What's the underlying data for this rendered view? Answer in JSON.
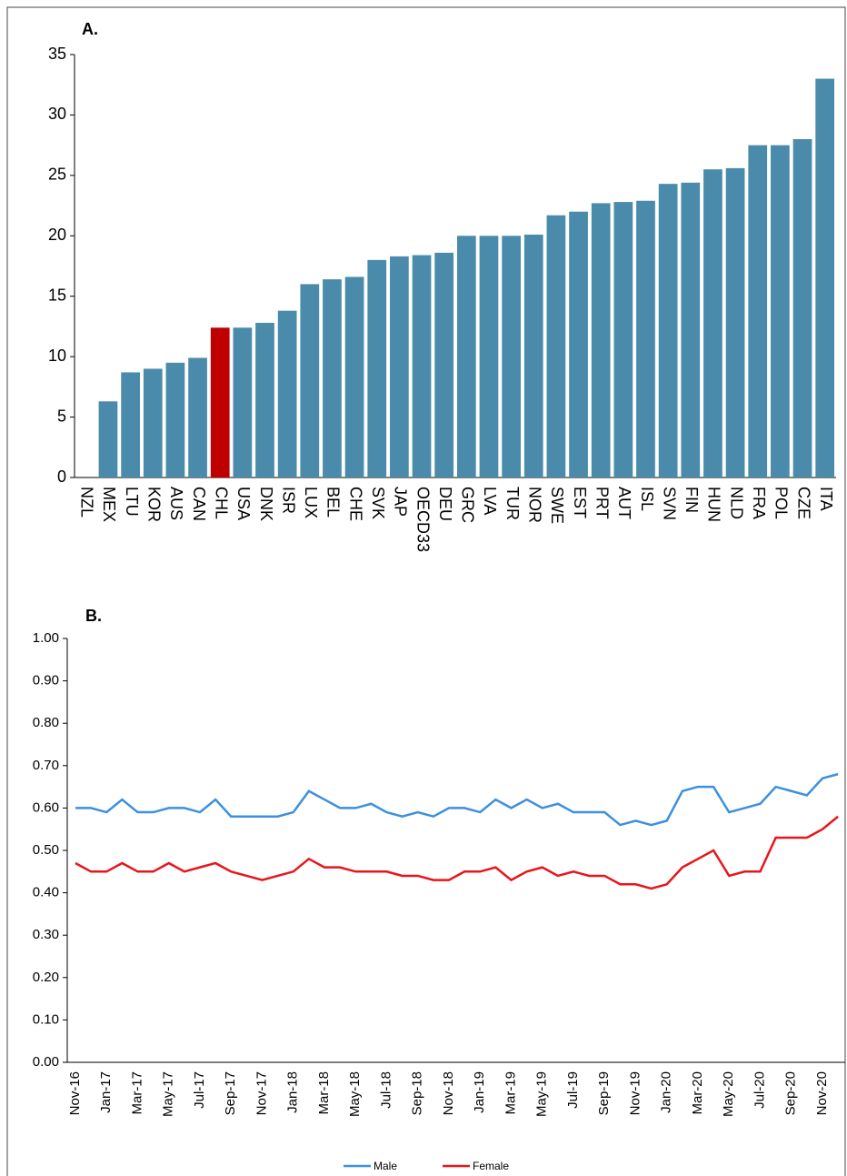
{
  "chart_data": [
    {
      "type": "bar",
      "title": "A.",
      "categories": [
        "NZL",
        "MEX",
        "LTU",
        "KOR",
        "AUS",
        "CAN",
        "CHL",
        "USA",
        "DNK",
        "ISR",
        "LUX",
        "BEL",
        "CHE",
        "SVK",
        "JAP",
        "OECD33",
        "DEU",
        "GRC",
        "LVA",
        "TUR",
        "NOR",
        "SWE",
        "EST",
        "PRT",
        "AUT",
        "ISL",
        "SVN",
        "FIN",
        "HUN",
        "NLD",
        "FRA",
        "POL",
        "CZE",
        "ITA"
      ],
      "values": [
        0,
        6.3,
        8.7,
        9.0,
        9.5,
        9.9,
        12.4,
        12.4,
        12.8,
        13.8,
        16.0,
        16.4,
        16.6,
        18.0,
        18.3,
        18.4,
        18.6,
        20.0,
        20.0,
        20.0,
        20.1,
        21.7,
        22.0,
        22.7,
        22.8,
        22.9,
        24.3,
        24.4,
        25.5,
        25.6,
        27.5,
        27.5,
        28.0,
        33.0
      ],
      "colors": [
        "#4a8aab",
        "#4a8aab",
        "#4a8aab",
        "#4a8aab",
        "#4a8aab",
        "#4a8aab",
        "#c00000",
        "#4a8aab",
        "#4a8aab",
        "#4a8aab",
        "#4a8aab",
        "#4a8aab",
        "#4a8aab",
        "#4a8aab",
        "#4a8aab",
        "#4a8aab",
        "#4a8aab",
        "#4a8aab",
        "#4a8aab",
        "#4a8aab",
        "#4a8aab",
        "#4a8aab",
        "#4a8aab",
        "#4a8aab",
        "#4a8aab",
        "#4a8aab",
        "#4a8aab",
        "#4a8aab",
        "#4a8aab",
        "#4a8aab",
        "#4a8aab",
        "#4a8aab",
        "#4a8aab",
        "#4a8aab"
      ],
      "ylim": [
        0,
        35
      ],
      "yticks": [
        0,
        5,
        10,
        15,
        20,
        25,
        30,
        35
      ],
      "grid": false
    },
    {
      "type": "line",
      "title": "B.",
      "categories": [
        "Nov-16",
        null,
        "Jan-17",
        null,
        "Mar-17",
        null,
        "May-17",
        null,
        "Jul-17",
        null,
        "Sep-17",
        null,
        "Nov-17",
        null,
        "Jan-18",
        null,
        "Mar-18",
        null,
        "May-18",
        null,
        "Jul-18",
        null,
        "Sep-18",
        null,
        "Nov-18",
        null,
        "Jan-19",
        null,
        "Mar-19",
        null,
        "May-19",
        null,
        "Jul-19",
        null,
        "Sep-19",
        null,
        "Nov-19",
        null,
        "Jan-20",
        null,
        "Mar-20",
        null,
        "May-20",
        null,
        "Jul-20",
        null,
        "Sep-20",
        null,
        "Nov-20",
        null
      ],
      "series": [
        {
          "name": "Male",
          "color": "#3d8fe0",
          "values": [
            0.6,
            0.6,
            0.59,
            0.62,
            0.59,
            0.59,
            0.6,
            0.6,
            0.59,
            0.62,
            0.58,
            0.58,
            0.58,
            0.58,
            0.59,
            0.64,
            0.62,
            0.6,
            0.6,
            0.61,
            0.59,
            0.58,
            0.59,
            0.58,
            0.6,
            0.6,
            0.59,
            0.62,
            0.6,
            0.62,
            0.6,
            0.61,
            0.59,
            0.59,
            0.59,
            0.56,
            0.57,
            0.56,
            0.57,
            0.64,
            0.65,
            0.65,
            0.59,
            0.6,
            0.61,
            0.65,
            0.64,
            0.63,
            0.67,
            0.68
          ]
        },
        {
          "name": "Female",
          "color": "#e8151b",
          "values": [
            0.47,
            0.45,
            0.45,
            0.47,
            0.45,
            0.45,
            0.47,
            0.45,
            0.46,
            0.47,
            0.45,
            0.44,
            0.43,
            0.44,
            0.45,
            0.48,
            0.46,
            0.46,
            0.45,
            0.45,
            0.45,
            0.44,
            0.44,
            0.43,
            0.43,
            0.45,
            0.45,
            0.46,
            0.43,
            0.45,
            0.46,
            0.44,
            0.45,
            0.44,
            0.44,
            0.42,
            0.42,
            0.41,
            0.42,
            0.46,
            0.48,
            0.5,
            0.44,
            0.45,
            0.45,
            0.53,
            0.53,
            0.53,
            0.55,
            0.58
          ]
        }
      ],
      "ylim": [
        0,
        1
      ],
      "yticks": [
        {
          "value": 0,
          "label": "0.00"
        },
        {
          "value": 0.1,
          "label": "0.10"
        },
        {
          "value": 0.2,
          "label": "0.20"
        },
        {
          "value": 0.3,
          "label": "0.30"
        },
        {
          "value": 0.4,
          "label": "0.40"
        },
        {
          "value": 0.5,
          "label": "0.50"
        },
        {
          "value": 0.6,
          "label": "0.60"
        },
        {
          "value": 0.7,
          "label": "0.70"
        },
        {
          "value": 0.8,
          "label": "0.80"
        },
        {
          "value": 0.9,
          "label": "0.90"
        },
        {
          "value": 1,
          "label": "1.00"
        }
      ],
      "legend": "bottom"
    }
  ]
}
